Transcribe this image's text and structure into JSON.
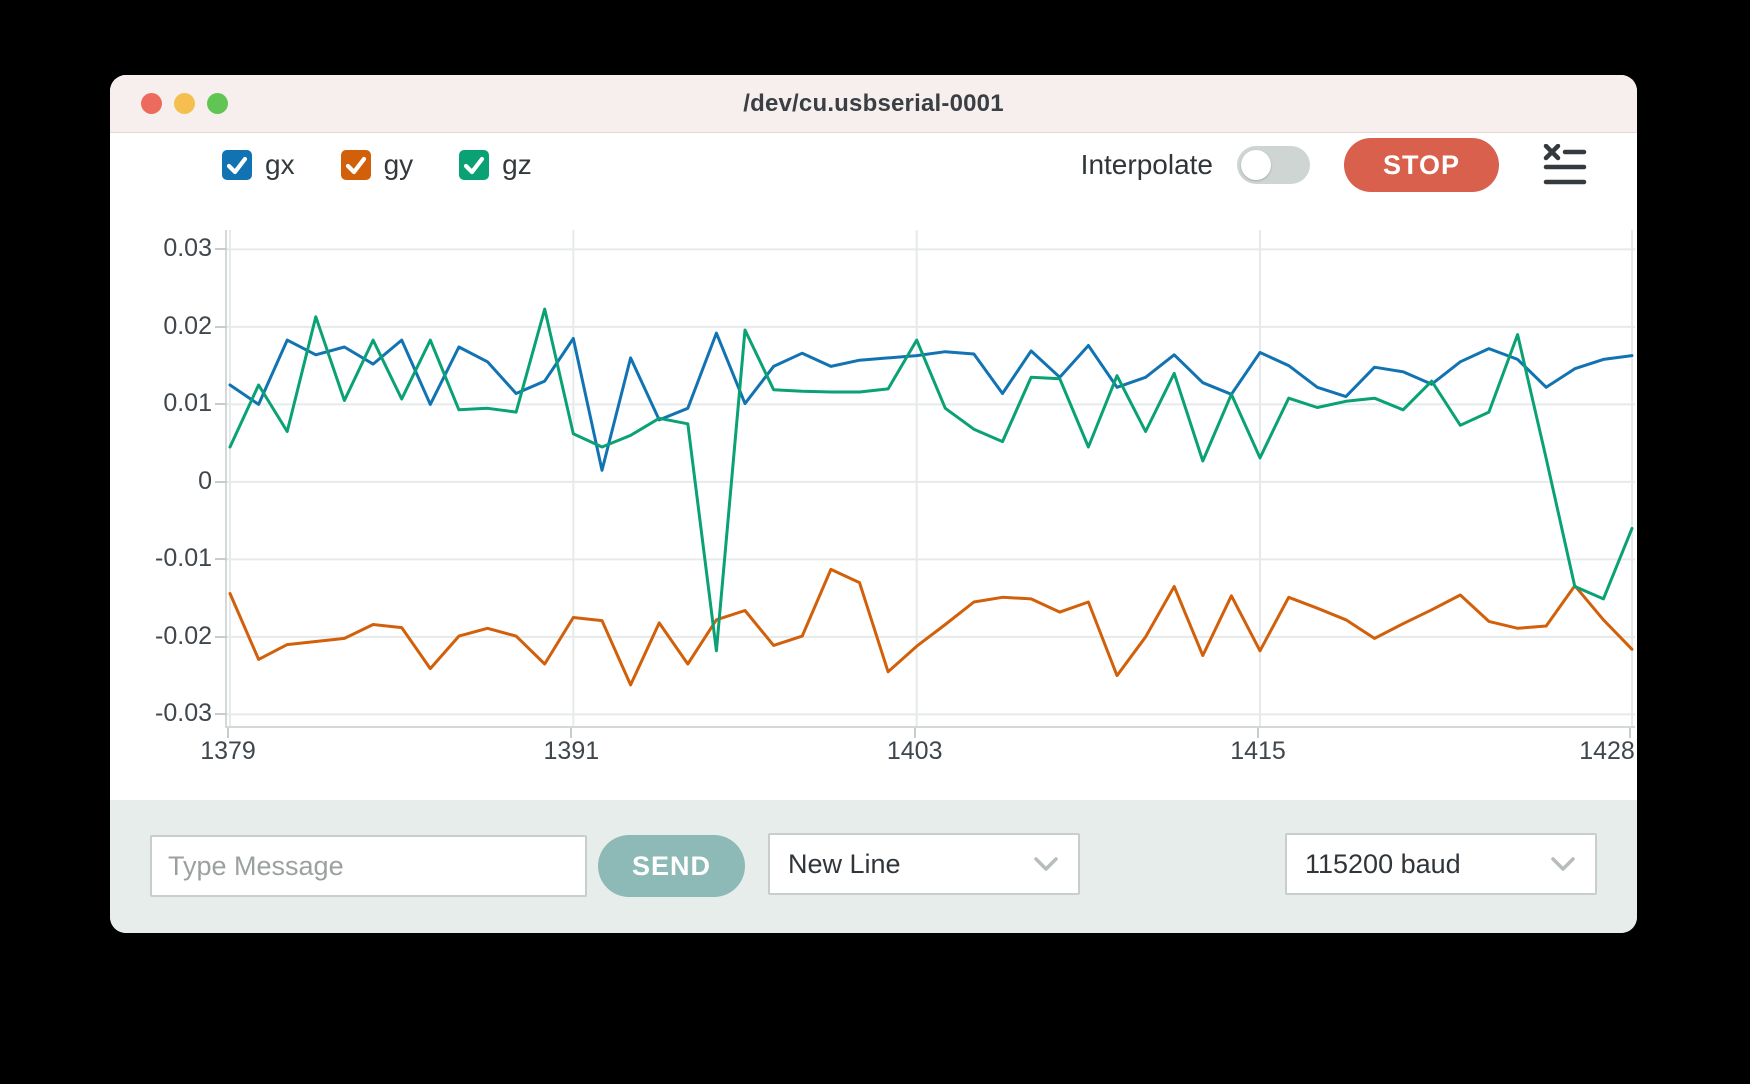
{
  "window": {
    "title": "/dev/cu.usbserial-0001"
  },
  "traffic_lights": {
    "close_color": "#ed6a5e",
    "minimize_color": "#f5bf4f",
    "maximize_color": "#61c554"
  },
  "legend": [
    {
      "label": "gx",
      "color": "#1273b2",
      "checked": true
    },
    {
      "label": "gy",
      "color": "#d2600a",
      "checked": true
    },
    {
      "label": "gz",
      "color": "#0aa174",
      "checked": true
    }
  ],
  "controls": {
    "interpolate_label": "Interpolate",
    "interpolate_on": false,
    "stop_label": "STOP",
    "stop_color": "#d8604d",
    "clear_plots_icon": "x-list-icon"
  },
  "chart_data": {
    "type": "line",
    "x": [
      1379,
      1380,
      1381,
      1382,
      1383,
      1384,
      1385,
      1386,
      1387,
      1388,
      1389,
      1390,
      1391,
      1392,
      1393,
      1394,
      1395,
      1396,
      1397,
      1398,
      1399,
      1400,
      1401,
      1402,
      1403,
      1404,
      1405,
      1406,
      1407,
      1408,
      1409,
      1410,
      1411,
      1412,
      1413,
      1414,
      1415,
      1416,
      1417,
      1418,
      1419,
      1420,
      1421,
      1422,
      1423,
      1424,
      1425,
      1426,
      1427,
      1428
    ],
    "series": [
      {
        "name": "gx",
        "color": "#1273b2",
        "values": [
          0.0125,
          0.01,
          0.0183,
          0.0164,
          0.0174,
          0.0152,
          0.0183,
          0.01,
          0.0174,
          0.0155,
          0.0114,
          0.013,
          0.0185,
          0.0015,
          0.016,
          0.008,
          0.0095,
          0.0192,
          0.0101,
          0.0149,
          0.0166,
          0.0149,
          0.0157,
          0.016,
          0.0163,
          0.0168,
          0.0165,
          0.0114,
          0.0169,
          0.0135,
          0.0176,
          0.0122,
          0.0135,
          0.0164,
          0.0128,
          0.0113,
          0.0167,
          0.015,
          0.0122,
          0.011,
          0.0148,
          0.0142,
          0.0126,
          0.0155,
          0.0172,
          0.0158,
          0.0122,
          0.0146,
          0.0158,
          0.0163
        ]
      },
      {
        "name": "gy",
        "color": "#d2600a",
        "values": [
          -0.0144,
          -0.0229,
          -0.021,
          -0.0206,
          -0.0202,
          -0.0184,
          -0.0188,
          -0.0241,
          -0.0199,
          -0.0189,
          -0.0199,
          -0.0235,
          -0.0175,
          -0.0179,
          -0.0262,
          -0.0182,
          -0.0235,
          -0.0178,
          -0.0166,
          -0.0211,
          -0.0199,
          -0.0113,
          -0.013,
          -0.0245,
          -0.0212,
          -0.0184,
          -0.0155,
          -0.0149,
          -0.0151,
          -0.0168,
          -0.0155,
          -0.025,
          -0.02,
          -0.0135,
          -0.0224,
          -0.0147,
          -0.0218,
          -0.0149,
          -0.0163,
          -0.0178,
          -0.0202,
          -0.0183,
          -0.0165,
          -0.0146,
          -0.018,
          -0.0189,
          -0.0186,
          -0.0134,
          -0.0178,
          -0.0216
        ]
      },
      {
        "name": "gz",
        "color": "#0aa174",
        "values": [
          0.0045,
          0.0125,
          0.0065,
          0.0213,
          0.0105,
          0.0183,
          0.0107,
          0.0183,
          0.0093,
          0.0095,
          0.009,
          0.0223,
          0.0062,
          0.0045,
          0.006,
          0.0082,
          0.0075,
          -0.0218,
          0.0196,
          0.0119,
          0.0117,
          0.0116,
          0.0116,
          0.012,
          0.0183,
          0.0095,
          0.0068,
          0.0052,
          0.0135,
          0.0133,
          0.0045,
          0.0137,
          0.0065,
          0.014,
          0.0027,
          0.0113,
          0.0031,
          0.0108,
          0.0096,
          0.0104,
          0.0108,
          0.0093,
          0.013,
          0.0073,
          0.009,
          0.019,
          0.003,
          -0.0135,
          -0.0151,
          -0.006
        ]
      }
    ],
    "title": "",
    "xlabel": "",
    "ylabel": "",
    "xlim": [
      1379,
      1428
    ],
    "ylim": [
      -0.0315,
      0.0325
    ],
    "xticks": [
      1379,
      1391,
      1403,
      1415,
      1428
    ],
    "xtick_labels": [
      "1379",
      "1391",
      "1403",
      "1415",
      "1428"
    ],
    "yticks": [
      0.03,
      0.02,
      0.01,
      0,
      -0.01,
      -0.02,
      -0.03
    ],
    "ytick_labels": [
      "0.03",
      "0.02",
      "0.01",
      "0",
      "-0.01",
      "-0.02",
      "-0.03"
    ],
    "grid": true,
    "legend_position": "top-left",
    "grid_color": "#e7eaea"
  },
  "bottom_bar": {
    "message_placeholder": "Type Message",
    "send_label": "SEND",
    "send_color": "#8db9b6",
    "line_ending_selected": "New Line",
    "baud_selected": "115200 baud"
  }
}
